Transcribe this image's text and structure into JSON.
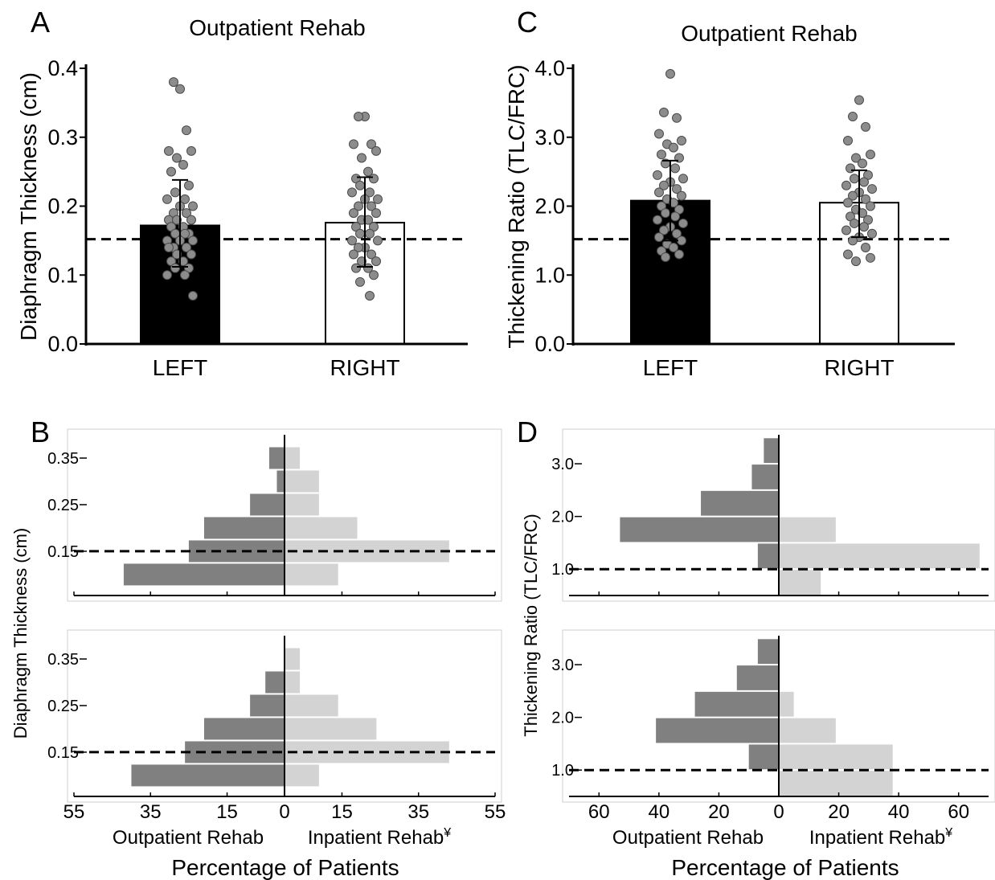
{
  "panels": {
    "A": {
      "letter": "A"
    },
    "B": {
      "letter": "B"
    },
    "C": {
      "letter": "C"
    },
    "D": {
      "letter": "D"
    }
  },
  "chart_data": [
    {
      "id": "A",
      "type": "bar",
      "title": "Outpatient Rehab",
      "ylabel": "Diaphragm Thickness (cm)",
      "ylim": [
        0,
        0.4
      ],
      "yticks": [
        "0.0",
        "0.1",
        "0.2",
        "0.3",
        "0.4"
      ],
      "categories": [
        "LEFT",
        "RIGHT"
      ],
      "values": [
        0.172,
        0.176
      ],
      "error_low": [
        0.112,
        0.112
      ],
      "error_high": [
        0.238,
        0.242
      ],
      "bar_colors": [
        "#000000",
        "#ffffff"
      ],
      "reference_line": 0.152,
      "points": [
        [
          0.37,
          0.38,
          0.31,
          0.28,
          0.28,
          0.27,
          0.26,
          0.25,
          0.23,
          0.22,
          0.21,
          0.21,
          0.2,
          0.2,
          0.19,
          0.19,
          0.18,
          0.18,
          0.18,
          0.17,
          0.17,
          0.16,
          0.16,
          0.16,
          0.15,
          0.15,
          0.15,
          0.14,
          0.14,
          0.14,
          0.13,
          0.13,
          0.12,
          0.12,
          0.11,
          0.11,
          0.1,
          0.1,
          0.07
        ],
        [
          0.33,
          0.33,
          0.29,
          0.29,
          0.28,
          0.27,
          0.25,
          0.24,
          0.24,
          0.23,
          0.22,
          0.22,
          0.21,
          0.21,
          0.2,
          0.2,
          0.19,
          0.19,
          0.18,
          0.18,
          0.17,
          0.17,
          0.16,
          0.16,
          0.15,
          0.15,
          0.14,
          0.14,
          0.13,
          0.13,
          0.12,
          0.12,
          0.11,
          0.11,
          0.1,
          0.09,
          0.07
        ]
      ]
    },
    {
      "id": "C",
      "type": "bar",
      "title": "Outpatient Rehab",
      "ylabel": "Thickening Ratio (TLC/FRC)",
      "ylim": [
        0,
        4.0
      ],
      "yticks": [
        "0.0",
        "1.0",
        "2.0",
        "3.0",
        "4.0"
      ],
      "categories": [
        "LEFT",
        "RIGHT"
      ],
      "values": [
        2.08,
        2.05
      ],
      "error_low": [
        1.5,
        1.55
      ],
      "error_high": [
        2.66,
        2.52
      ],
      "bar_colors": [
        "#000000",
        "#ffffff"
      ],
      "reference_line": 1.52,
      "points": [
        [
          3.92,
          3.36,
          3.28,
          3.05,
          2.95,
          2.9,
          2.85,
          2.75,
          2.7,
          2.62,
          2.55,
          2.45,
          2.4,
          2.35,
          2.3,
          2.25,
          2.2,
          2.15,
          2.1,
          2.05,
          2.0,
          1.95,
          1.9,
          1.85,
          1.8,
          1.75,
          1.7,
          1.65,
          1.6,
          1.55,
          1.5,
          1.45,
          1.4,
          1.35,
          1.3,
          1.26
        ],
        [
          3.54,
          3.3,
          3.15,
          2.95,
          2.75,
          2.7,
          2.62,
          2.55,
          2.45,
          2.4,
          2.35,
          2.3,
          2.25,
          2.2,
          2.15,
          2.1,
          2.05,
          2.0,
          1.95,
          1.9,
          1.85,
          1.8,
          1.75,
          1.7,
          1.65,
          1.6,
          1.55,
          1.5,
          1.4,
          1.3,
          1.25,
          1.2
        ]
      ]
    },
    {
      "id": "B",
      "type": "bar",
      "orientation": "horizontal-diverging",
      "ylabel": "Diaphragm Thickness (cm)",
      "xlabel": "Percentage of Patients",
      "left_label": "Outpatient Rehab",
      "right_label": "Inpatient Rehab",
      "right_label_sup": "¥",
      "xlim": [
        -55,
        55
      ],
      "xticks": [
        -55,
        -35,
        -15,
        0,
        15,
        35,
        55
      ],
      "xtick_labels": [
        "55",
        "35",
        "15",
        "0",
        "15",
        "35",
        "55"
      ],
      "yticks": [
        0.15,
        0.25,
        0.35
      ],
      "ytick_labels": [
        "0.15",
        "0.25",
        "0.35"
      ],
      "ylim": [
        0.055,
        0.4
      ],
      "reference_line": 0.15,
      "left_color": "#808080",
      "right_color": "#d3d3d3",
      "subplots": [
        {
          "bins": [
            0.1,
            0.15,
            0.2,
            0.25,
            0.3,
            0.35
          ],
          "left": [
            42,
            25,
            21,
            9,
            2,
            4
          ],
          "right": [
            14,
            43,
            19,
            9,
            9,
            4
          ]
        },
        {
          "bins": [
            0.1,
            0.15,
            0.2,
            0.25,
            0.3,
            0.35
          ],
          "left": [
            40,
            26,
            21,
            9,
            5,
            0
          ],
          "right": [
            9,
            43,
            24,
            14,
            4,
            4
          ]
        }
      ]
    },
    {
      "id": "D",
      "type": "bar",
      "orientation": "horizontal-diverging",
      "ylabel": "Thickening Ratio (TLC/FRC)",
      "xlabel": "Percentage of Patients",
      "left_label": "Outpatient Rehab",
      "right_label": "Inpatient Rehab",
      "right_label_sup": "¥",
      "xlim": [
        -70,
        70
      ],
      "xticks": [
        -60,
        -40,
        -20,
        0,
        20,
        40,
        60
      ],
      "xtick_labels": [
        "60",
        "40",
        "20",
        "0",
        "20",
        "40",
        "60"
      ],
      "yticks": [
        1.0,
        2.0,
        3.0
      ],
      "ytick_labels": [
        "1.0",
        "2.0",
        "3.0"
      ],
      "ylim": [
        0.5,
        3.55
      ],
      "reference_line": 1.0,
      "left_color": "#808080",
      "right_color": "#d3d3d3",
      "subplots": [
        {
          "bins": [
            0.75,
            1.25,
            1.75,
            2.25,
            2.75,
            3.25
          ],
          "left": [
            0,
            7,
            53,
            26,
            9,
            5
          ],
          "right": [
            14,
            67,
            19,
            0,
            0,
            0
          ]
        },
        {
          "bins": [
            0.75,
            1.25,
            1.75,
            2.25,
            2.75,
            3.25
          ],
          "left": [
            0,
            10,
            41,
            28,
            14,
            7
          ],
          "right": [
            38,
            38,
            19,
            5,
            0,
            0
          ]
        }
      ]
    }
  ]
}
